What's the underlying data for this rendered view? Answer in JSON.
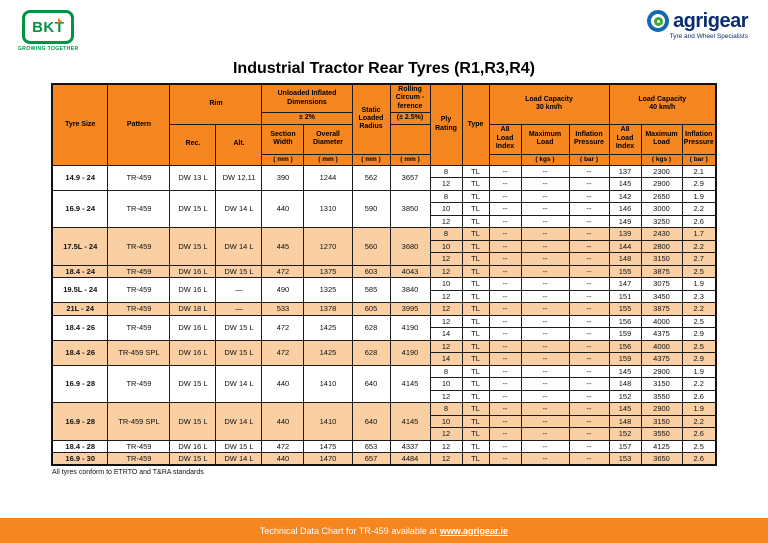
{
  "page": {
    "title": "Industrial Tractor Rear Tyres (R1,R3,R4)",
    "footnote": "All tyres conform to ETRTO and T&RA standards",
    "footer_text": "Technical Data Chart for TR-459 available at ",
    "footer_link": "www.agrigear.ie"
  },
  "logos": {
    "bkt": {
      "name": "BKT",
      "tagline": "GROWING TOGETHER"
    },
    "agrigear": {
      "name": "agrigear",
      "tagline": "Tyre and Wheel Specialists"
    }
  },
  "colors": {
    "header_orange": "#F6861F",
    "row_shade": "#F9CFA3",
    "bkt_green": "#009444",
    "agrigear_navy": "#0C2E6C",
    "agrigear_blue": "#1467B3",
    "agrigear_green": "#43A72F"
  },
  "table": {
    "header": {
      "tyre_size": "Tyre Size",
      "pattern": "Pattern",
      "rim": "Rim",
      "rec": "Rec.",
      "alt": "Alt.",
      "dims": "Unloaded Inflated\nDimensions",
      "dims_tol": "± 2%",
      "section_width": "Section\nWidth",
      "overall_diameter": "Overall\nDiameter",
      "static_loaded_radius": "Static\nLoaded\nRadius",
      "rolling": "Rolling\nCircum -\nference",
      "rolling_tol": "(± 2.5%)",
      "ply": "Ply\nRating",
      "type": "Type",
      "lc30": "Load  Capacity\n30 km/h",
      "lc40": "Load  Capacity\n40 km/h",
      "a8": "A8\nLoad\nIndex",
      "max_load": "Maximum\nLoad",
      "inflation": "Inflation\nPressure",
      "unit_mm": "( mm )",
      "unit_kgs": "( kgs )",
      "unit_bar": "( bar )"
    },
    "groups": [
      {
        "size": "14.9 - 24",
        "pattern": "TR-459",
        "rec": "DW 13 L",
        "alt": "DW 12,11",
        "sw": "390",
        "od": "1244",
        "slr": "562",
        "rc": "3657",
        "shaded": false,
        "rows": [
          [
            "8",
            "TL",
            "--",
            "--",
            "--",
            "137",
            "2300",
            "2.1"
          ],
          [
            "12",
            "TL",
            "--",
            "--",
            "--",
            "145",
            "2900",
            "2.9"
          ]
        ]
      },
      {
        "size": "16.9 - 24",
        "pattern": "TR-459",
        "rec": "DW 15 L",
        "alt": "DW 14 L",
        "sw": "440",
        "od": "1310",
        "slr": "590",
        "rc": "3850",
        "shaded": false,
        "rows": [
          [
            "8",
            "TL",
            "--",
            "--",
            "--",
            "142",
            "2650",
            "1.9"
          ],
          [
            "10",
            "TL",
            "--",
            "--",
            "--",
            "146",
            "3000",
            "2.2"
          ],
          [
            "12",
            "TL",
            "--",
            "--",
            "--",
            "149",
            "3250",
            "2.6"
          ]
        ]
      },
      {
        "size": "17.5L - 24",
        "pattern": "TR-459",
        "rec": "DW 15 L",
        "alt": "DW 14 L",
        "sw": "445",
        "od": "1270",
        "slr": "560",
        "rc": "3680",
        "shaded": true,
        "rows": [
          [
            "8",
            "TL",
            "--",
            "--",
            "--",
            "139",
            "2430",
            "1.7"
          ],
          [
            "10",
            "TL",
            "--",
            "--",
            "--",
            "144",
            "2800",
            "2.2"
          ],
          [
            "12",
            "TL",
            "--",
            "--",
            "--",
            "148",
            "3150",
            "2.7"
          ]
        ]
      },
      {
        "size": "18.4 - 24",
        "pattern": "TR-459",
        "rec": "DW 16 L",
        "alt": "DW 15 L",
        "sw": "472",
        "od": "1375",
        "slr": "603",
        "rc": "4043",
        "shaded": true,
        "rows": [
          [
            "12",
            "TL",
            "--",
            "--",
            "--",
            "155",
            "3875",
            "2.5"
          ]
        ]
      },
      {
        "size": "19.5L - 24",
        "pattern": "TR-459",
        "rec": "DW 16 L",
        "alt": "—",
        "sw": "490",
        "od": "1325",
        "slr": "585",
        "rc": "3840",
        "shaded": false,
        "rows": [
          [
            "10",
            "TL",
            "--",
            "--",
            "--",
            "147",
            "3075",
            "1.9"
          ],
          [
            "12",
            "TL",
            "--",
            "--",
            "--",
            "151",
            "3450",
            "2.3"
          ]
        ]
      },
      {
        "size": "21L - 24",
        "pattern": "TR-459",
        "rec": "DW 18 L",
        "alt": "—",
        "sw": "533",
        "od": "1378",
        "slr": "605",
        "rc": "3995",
        "shaded": true,
        "rows": [
          [
            "12",
            "TL",
            "--",
            "--",
            "--",
            "155",
            "3875",
            "2.2"
          ]
        ]
      },
      {
        "size": "18.4 - 26",
        "pattern": "TR-459",
        "rec": "DW 16 L",
        "alt": "DW 15 L",
        "sw": "472",
        "od": "1425",
        "slr": "628",
        "rc": "4190",
        "shaded": false,
        "rows": [
          [
            "12",
            "TL",
            "--",
            "--",
            "--",
            "156",
            "4000",
            "2.5"
          ],
          [
            "14",
            "TL",
            "--",
            "--",
            "--",
            "159",
            "4375",
            "2.9"
          ]
        ]
      },
      {
        "size": "18.4 - 26",
        "pattern": "TR-459 SPL",
        "rec": "DW 16 L",
        "alt": "DW 15 L",
        "sw": "472",
        "od": "1425",
        "slr": "628",
        "rc": "4190",
        "shaded": true,
        "rows": [
          [
            "12",
            "TL",
            "--",
            "--",
            "--",
            "156",
            "4000",
            "2.5"
          ],
          [
            "14",
            "TL",
            "--",
            "--",
            "--",
            "159",
            "4375",
            "2.9"
          ]
        ]
      },
      {
        "size": "16.9 - 28",
        "pattern": "TR-459",
        "rec": "DW 15 L",
        "alt": "DW 14 L",
        "sw": "440",
        "od": "1410",
        "slr": "640",
        "rc": "4145",
        "shaded": false,
        "rows": [
          [
            "8",
            "TL",
            "--",
            "--",
            "--",
            "145",
            "2900",
            "1.9"
          ],
          [
            "10",
            "TL",
            "--",
            "--",
            "--",
            "148",
            "3150",
            "2.2"
          ],
          [
            "12",
            "TL",
            "--",
            "--",
            "--",
            "152",
            "3550",
            "2.6"
          ]
        ]
      },
      {
        "size": "16.9 - 28",
        "pattern": "TR-459 SPL",
        "rec": "DW 15 L",
        "alt": "DW 14 L",
        "sw": "440",
        "od": "1410",
        "slr": "640",
        "rc": "4145",
        "shaded": true,
        "rows": [
          [
            "8",
            "TL",
            "--",
            "--",
            "--",
            "145",
            "2900",
            "1.9"
          ],
          [
            "10",
            "TL",
            "--",
            "--",
            "--",
            "148",
            "3150",
            "2.2"
          ],
          [
            "12",
            "TL",
            "--",
            "--",
            "--",
            "152",
            "3550",
            "2.6"
          ]
        ]
      },
      {
        "size": "18.4 - 28",
        "pattern": "TR-459",
        "rec": "DW 16 L",
        "alt": "DW 15 L",
        "sw": "472",
        "od": "1475",
        "slr": "653",
        "rc": "4337",
        "shaded": false,
        "rows": [
          [
            "12",
            "TL",
            "--",
            "--",
            "--",
            "157",
            "4125",
            "2.5"
          ]
        ]
      },
      {
        "size": "16.9 - 30",
        "pattern": "TR-459",
        "rec": "DW 15 L",
        "alt": "DW 14 L",
        "sw": "440",
        "od": "1470",
        "slr": "657",
        "rc": "4484",
        "shaded": true,
        "rows": [
          [
            "12",
            "TL",
            "--",
            "--",
            "--",
            "153",
            "3650",
            "2.6"
          ]
        ]
      }
    ]
  }
}
